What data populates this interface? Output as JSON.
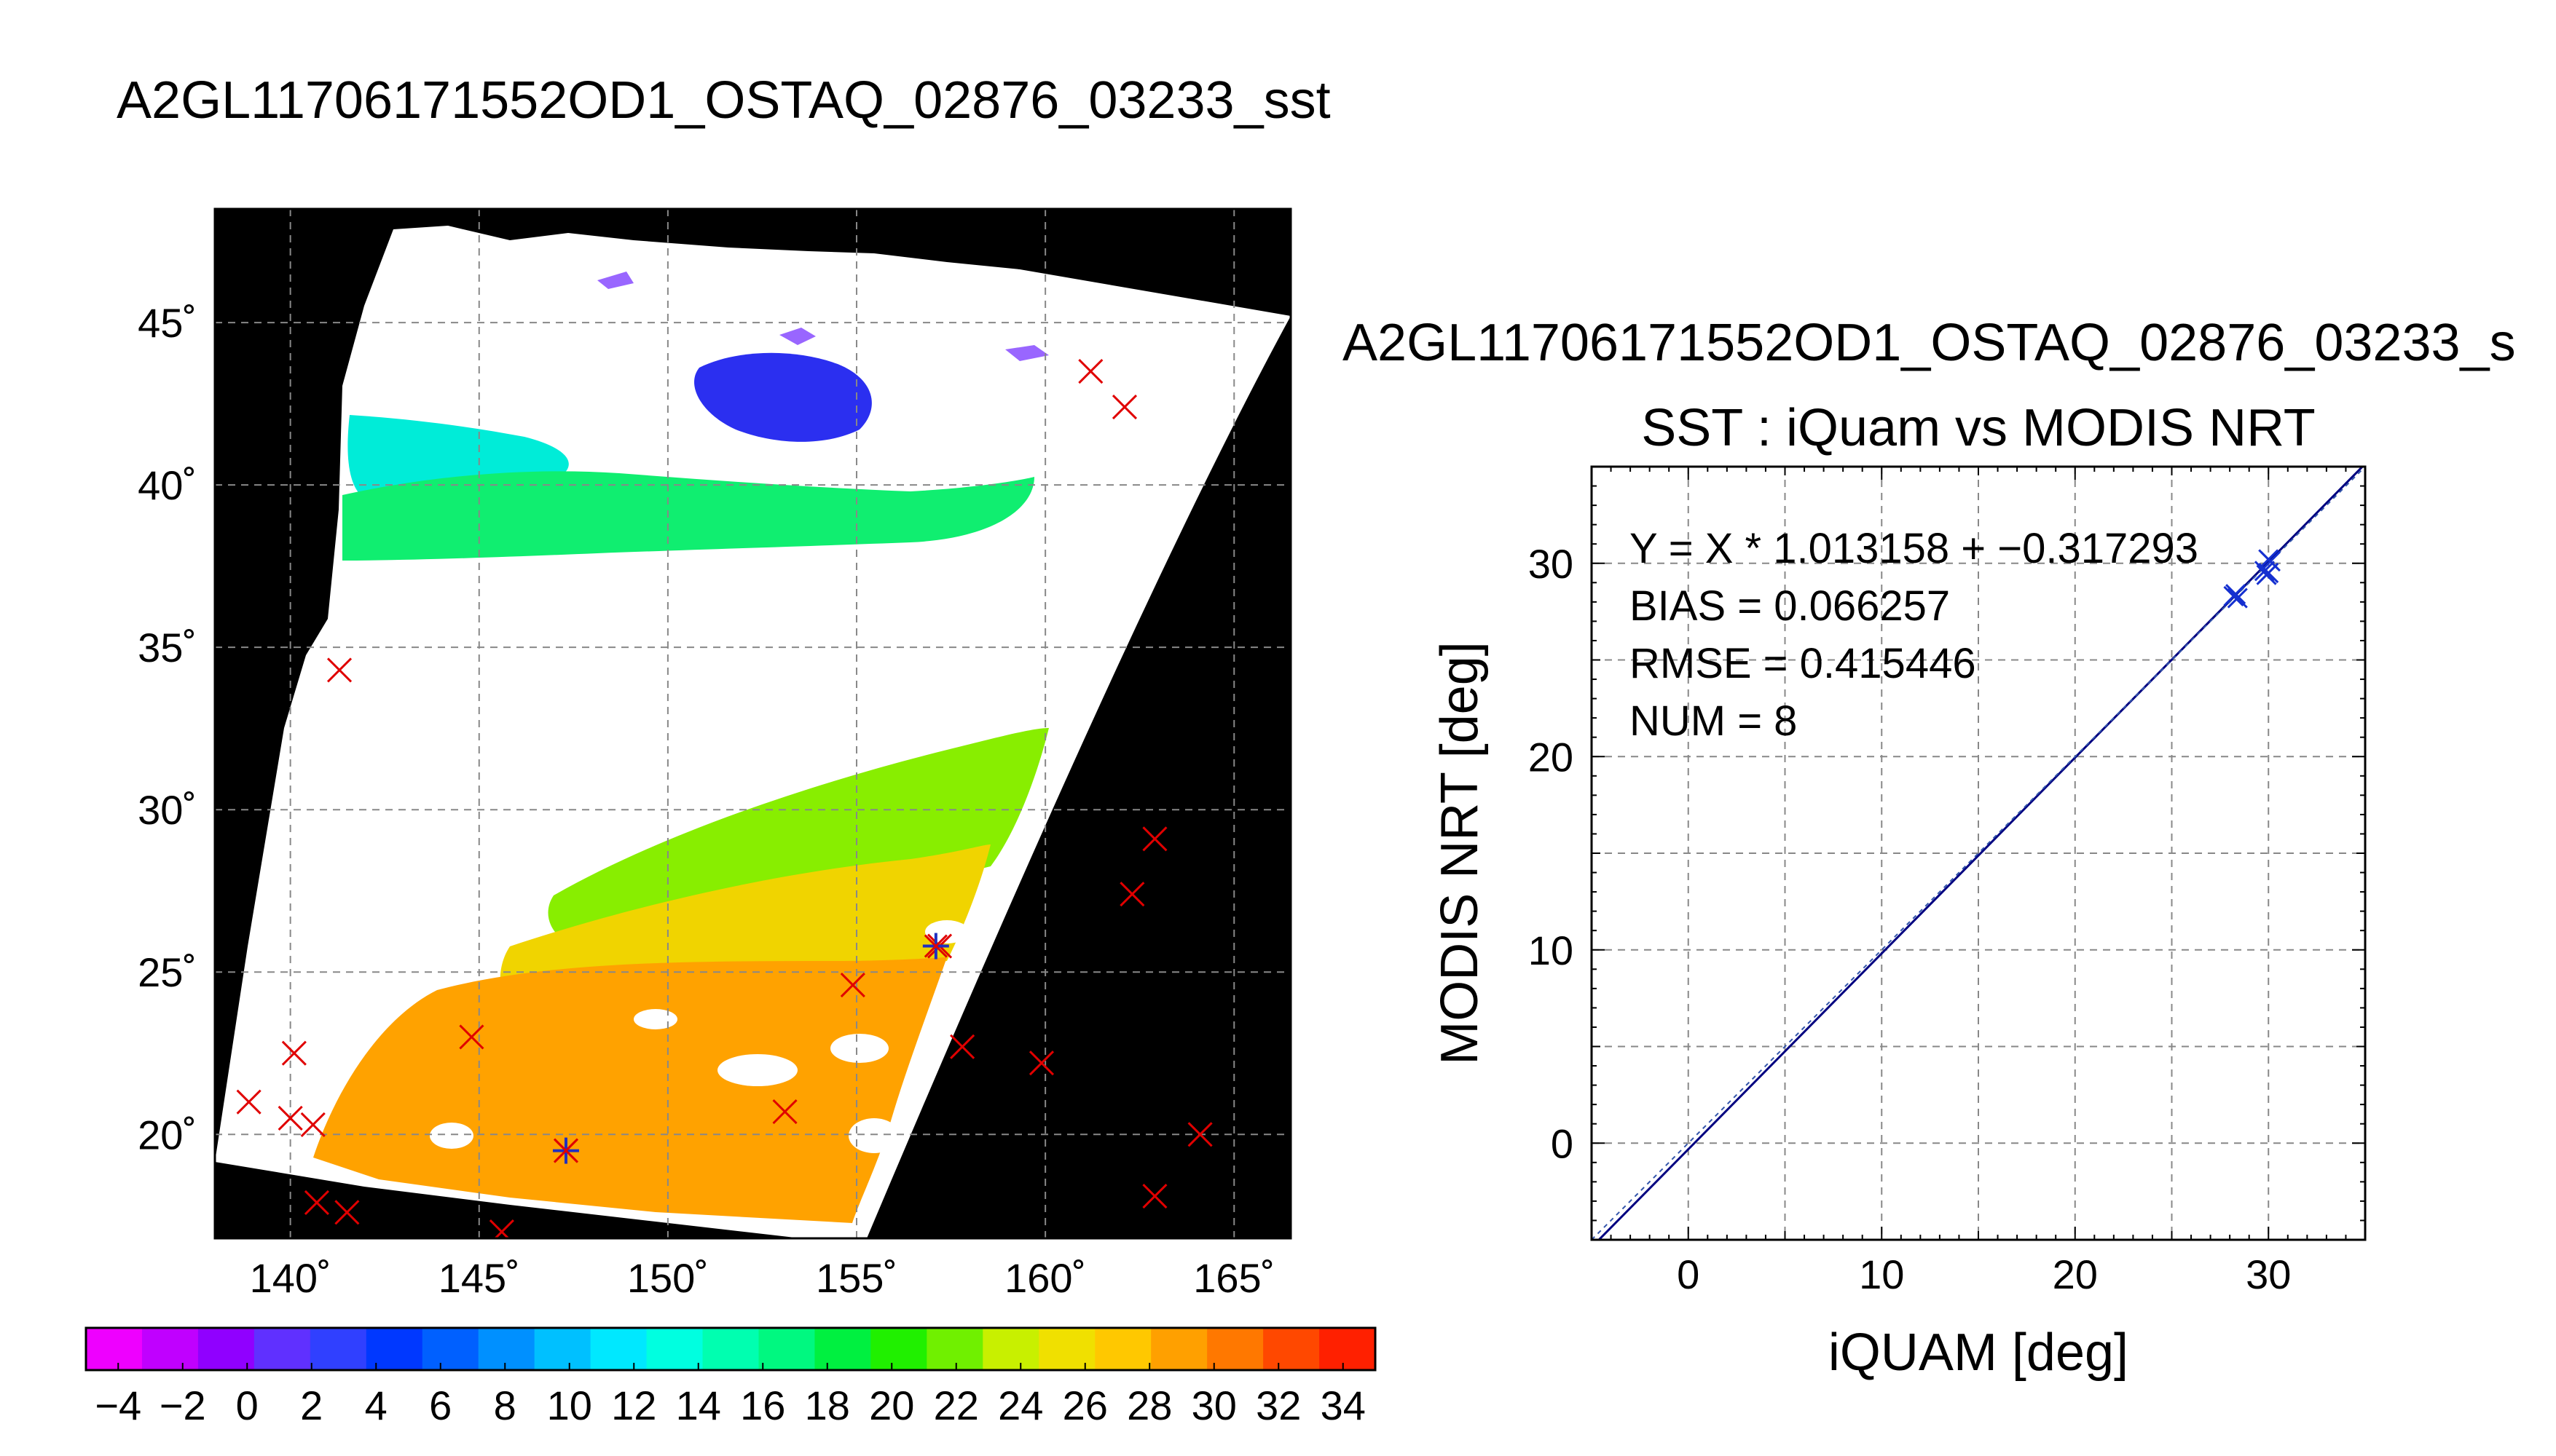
{
  "figure": {
    "map_title": "A2GL11706171552OD1_OSTAQ_02876_03233_sst",
    "scatter_top_title": "A2GL11706171552OD1_OSTAQ_02876_03233_s",
    "scatter_title": "SST : iQuam vs MODIS NRT"
  },
  "chart_data": [
    {
      "type": "heatmap",
      "name": "sst-map",
      "title": "A2GL11706171552OD1_OSTAQ_02876_03233_sst",
      "xlim": [
        138,
        166.5
      ],
      "ylim": [
        16.8,
        48.5
      ],
      "xticks": [
        140,
        145,
        150,
        155,
        160,
        165
      ],
      "yticks": [
        20,
        25,
        30,
        35,
        40,
        45
      ],
      "xtick_labels": [
        "140˚",
        "145˚",
        "150˚",
        "155˚",
        "160˚",
        "165˚"
      ],
      "ytick_labels": [
        "20˚",
        "25˚",
        "30˚",
        "35˚",
        "40˚",
        "45˚"
      ],
      "grid": true,
      "grid_style": "dashed",
      "colorbar": {
        "min": -5,
        "max": 35,
        "tick_values": [
          -4,
          -2,
          0,
          2,
          4,
          6,
          8,
          10,
          12,
          14,
          16,
          18,
          20,
          22,
          24,
          26,
          28,
          30,
          32,
          34
        ],
        "tick_labels": [
          "−4",
          "−2",
          "0",
          "2",
          "4",
          "6",
          "8",
          "10",
          "12",
          "14",
          "16",
          "18",
          "20",
          "22",
          "24",
          "26",
          "28",
          "30",
          "32",
          "34"
        ],
        "colors": [
          "#ee00ff",
          "#c000ff",
          "#9000ff",
          "#6030ff",
          "#3040ff",
          "#0038ff",
          "#0060ff",
          "#0090ff",
          "#00c0ff",
          "#00e8ff",
          "#00ffe0",
          "#00ffb0",
          "#00f880",
          "#00f040",
          "#20f000",
          "#70f000",
          "#c8f000",
          "#f0e000",
          "#ffc800",
          "#ffa000",
          "#ff7800",
          "#ff4800",
          "#ff2000"
        ]
      },
      "sst_regions": [
        {
          "name": "north-cold-patch",
          "value": 3,
          "color": "#3030f0"
        },
        {
          "name": "north-cyan-band",
          "value": 13,
          "color": "#00f0e0"
        },
        {
          "name": "north-green-band",
          "value": 18,
          "color": "#00f060"
        },
        {
          "name": "south-green-band",
          "value": 23,
          "color": "#80f000"
        },
        {
          "name": "south-yellow-band",
          "value": 27,
          "color": "#f0d800"
        },
        {
          "name": "south-orange-region",
          "value": 29,
          "color": "#ffa300"
        }
      ],
      "in_situ_points": [
        {
          "lon": 141.3,
          "lat": 34.3
        },
        {
          "lon": 161.2,
          "lat": 43.5
        },
        {
          "lon": 162.1,
          "lat": 42.4
        },
        {
          "lon": 162.9,
          "lat": 29.1
        },
        {
          "lon": 162.3,
          "lat": 27.4
        },
        {
          "lon": 157.2,
          "lat": 25.8
        },
        {
          "lon": 154.9,
          "lat": 24.6
        },
        {
          "lon": 157.8,
          "lat": 22.7
        },
        {
          "lon": 159.9,
          "lat": 22.2
        },
        {
          "lon": 153.1,
          "lat": 20.7
        },
        {
          "lon": 144.8,
          "lat": 23.0
        },
        {
          "lon": 140.1,
          "lat": 22.5
        },
        {
          "lon": 138.9,
          "lat": 21.0
        },
        {
          "lon": 140.0,
          "lat": 20.5
        },
        {
          "lon": 140.6,
          "lat": 20.3
        },
        {
          "lon": 147.3,
          "lat": 19.5
        },
        {
          "lon": 140.7,
          "lat": 17.9
        },
        {
          "lon": 141.5,
          "lat": 17.6
        },
        {
          "lon": 145.6,
          "lat": 17.0
        },
        {
          "lon": 162.9,
          "lat": 18.1
        },
        {
          "lon": 164.1,
          "lat": 20.0
        }
      ],
      "matchup_points": [
        {
          "lon": 157.1,
          "lat": 25.8
        },
        {
          "lon": 147.3,
          "lat": 19.5
        }
      ]
    },
    {
      "type": "scatter",
      "name": "sst-scatter",
      "title": "SST : iQuam vs MODIS NRT",
      "xlabel": "iQUAM [deg]",
      "ylabel": "MODIS NRT [deg]",
      "xlim": [
        -5,
        35
      ],
      "ylim": [
        -5,
        35
      ],
      "xticks": [
        0,
        10,
        20,
        30
      ],
      "yticks": [
        0,
        10,
        20,
        30
      ],
      "grid": true,
      "grid_style": "dashed",
      "points": [
        {
          "x": 28.3,
          "y": 28.4
        },
        {
          "x": 28.4,
          "y": 28.2
        },
        {
          "x": 30.0,
          "y": 30.2
        },
        {
          "x": 29.9,
          "y": 29.4
        },
        {
          "x": 30.0,
          "y": 29.5
        },
        {
          "x": 28.2,
          "y": 28.3
        },
        {
          "x": 30.1,
          "y": 30.1
        },
        {
          "x": 29.8,
          "y": 29.6
        }
      ],
      "fit": {
        "slope": 1.013158,
        "intercept": -0.317293
      },
      "stats_lines": [
        "Y = X * 1.013158 + −0.317293",
        "BIAS = 0.066257",
        "RMSE = 0.415446",
        "NUM = 8"
      ]
    }
  ]
}
